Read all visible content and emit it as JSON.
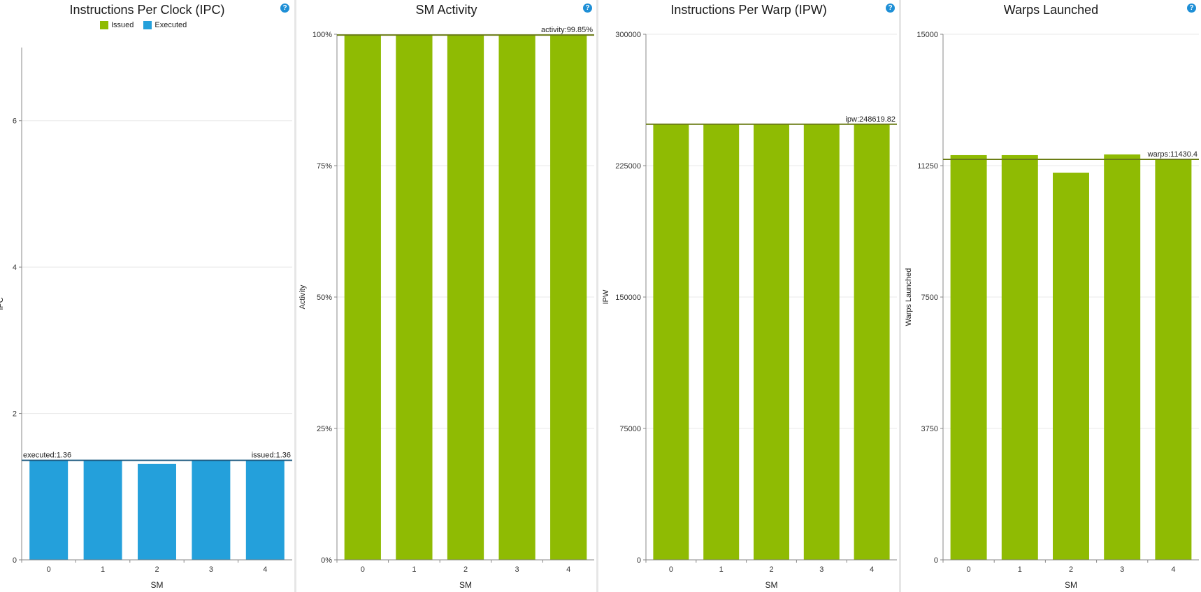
{
  "colors": {
    "issued": "#8fbb03",
    "executed": "#24a0db",
    "avg_green": "#6b7d16",
    "avg_blue": "#1e5a80",
    "grid": "#e8e8e8",
    "axis": "#888888"
  },
  "icons": {
    "help": "help-icon"
  },
  "help_glyph": "?",
  "chart_data": [
    {
      "type": "bar",
      "title": "Instructions Per Clock (IPC)",
      "xlabel": "SM",
      "ylabel": "IPC",
      "categories": [
        "0",
        "1",
        "2",
        "3",
        "4"
      ],
      "legend": [
        {
          "name": "Issued",
          "color": "#8fbb03"
        },
        {
          "name": "Executed",
          "color": "#24a0db"
        }
      ],
      "series": [
        {
          "name": "Executed",
          "values": [
            1.36,
            1.36,
            1.31,
            1.36,
            1.36
          ],
          "color": "#24a0db"
        }
      ],
      "ylim": [
        0,
        7
      ],
      "ticks": [
        0,
        2,
        4,
        6
      ],
      "tick_labels": [
        "0",
        "2",
        "4",
        "6"
      ],
      "reference_lines": [
        {
          "value": 1.36,
          "label_left": "executed:1.36",
          "label_right": "issued:1.36",
          "color": "#1e5a80"
        }
      ],
      "grid": true
    },
    {
      "type": "bar",
      "title": "SM Activity",
      "xlabel": "SM",
      "ylabel": "Activity",
      "categories": [
        "0",
        "1",
        "2",
        "3",
        "4"
      ],
      "series": [
        {
          "name": "Activity",
          "values": [
            99.85,
            99.85,
            99.85,
            99.85,
            99.85
          ],
          "color": "#8fbb03"
        }
      ],
      "ylim": [
        0,
        100
      ],
      "ticks": [
        0,
        25,
        50,
        75,
        100
      ],
      "tick_labels": [
        "0%",
        "25%",
        "50%",
        "75%",
        "100%"
      ],
      "reference_lines": [
        {
          "value": 99.85,
          "label_right": "activity:99.85%",
          "color": "#6b7d16"
        }
      ],
      "grid": true
    },
    {
      "type": "bar",
      "title": "Instructions Per Warp (IPW)",
      "xlabel": "SM",
      "ylabel": "IPW",
      "categories": [
        "0",
        "1",
        "2",
        "3",
        "4"
      ],
      "series": [
        {
          "name": "IPW",
          "values": [
            248619,
            248619,
            248619,
            248619,
            248619
          ],
          "color": "#8fbb03"
        }
      ],
      "ylim": [
        0,
        300000
      ],
      "ticks": [
        0,
        75000,
        150000,
        225000,
        300000
      ],
      "tick_labels": [
        "0",
        "75000",
        "150000",
        "225000",
        "300000"
      ],
      "reference_lines": [
        {
          "value": 248619.82,
          "label_right": "ipw:248619.82",
          "color": "#6b7d16"
        }
      ],
      "grid": true
    },
    {
      "type": "bar",
      "title": "Warps Launched",
      "xlabel": "SM",
      "ylabel": "Warps Launched",
      "categories": [
        "0",
        "1",
        "2",
        "3",
        "4"
      ],
      "series": [
        {
          "name": "Warps Launched",
          "values": [
            11550,
            11550,
            11050,
            11570,
            11430
          ],
          "color": "#8fbb03"
        }
      ],
      "ylim": [
        0,
        15000
      ],
      "ticks": [
        0,
        3750,
        7500,
        11250,
        15000
      ],
      "tick_labels": [
        "0",
        "3750",
        "7500",
        "11250",
        "15000"
      ],
      "reference_lines": [
        {
          "value": 11430.4,
          "label_right": "warps:11430.4",
          "color": "#6b7d16"
        }
      ],
      "grid": true
    }
  ]
}
